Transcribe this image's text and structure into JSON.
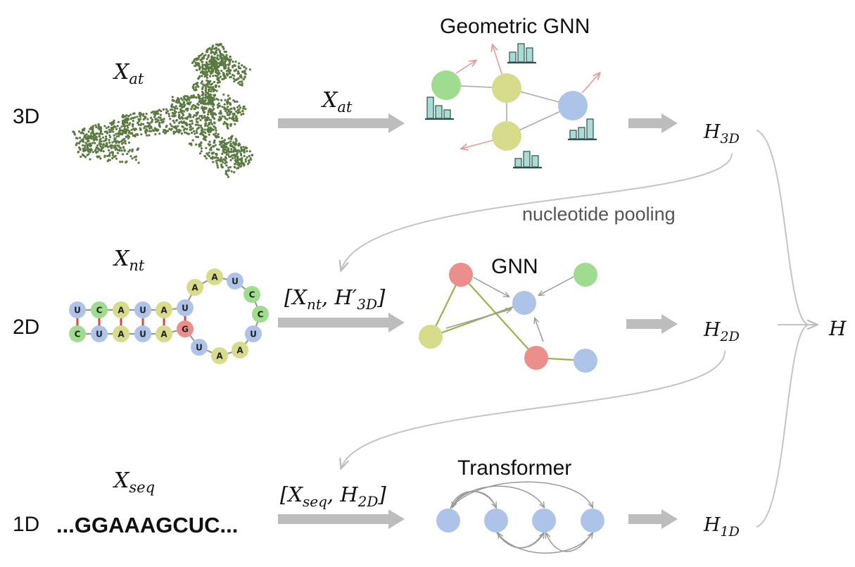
{
  "levels": {
    "d3": "3D",
    "d2": "2D",
    "d1": "1D"
  },
  "modules": {
    "geometric_gnn": "Geometric GNN",
    "gnn": "GNN",
    "transformer": "Transformer"
  },
  "annotations": {
    "nucleotide_pooling": "nucleotide pooling"
  },
  "sequence": "...GGAAAGCUC...",
  "math": {
    "x_at": {
      "base": "X",
      "sub": "at"
    },
    "x_at_arrow": {
      "base": "X",
      "sub": "at"
    },
    "x_nt": {
      "base": "X",
      "sub": "nt"
    },
    "x_seq": {
      "base": "X",
      "sub": "seq"
    },
    "h_3d": {
      "base": "H",
      "sub": "3D"
    },
    "h_2d": {
      "base": "H",
      "sub": "2D"
    },
    "h_1d": {
      "base": "H",
      "sub": "1D"
    },
    "h_final": {
      "base": "H",
      "sub": ""
    },
    "input_2d": {
      "open": "[",
      "a_base": "X",
      "a_sub": "nt",
      "sep": ", ",
      "b_base": "H′",
      "b_sub": "3D",
      "close": "]"
    },
    "input_1d": {
      "open": "[",
      "a_base": "X",
      "a_sub": "seq",
      "sep": ", ",
      "b_base": "H",
      "b_sub": "2D",
      "close": "]"
    }
  },
  "rna_structure": {
    "stem_top": [
      "U",
      "C",
      "A",
      "U",
      "A",
      "U"
    ],
    "stem_bottom": [
      "C",
      "U",
      "A",
      "U",
      "A",
      "G"
    ],
    "loop": [
      "A",
      "A",
      "U",
      "C",
      "C",
      "U",
      "A",
      "A",
      "U"
    ]
  },
  "colors": {
    "A": "#d6dc8c",
    "U": "#adc4e8",
    "C": "#9fdc8f",
    "G": "#ec8f8c",
    "point_cloud": "#5a7a40",
    "arrow": "#b8b8b8",
    "edge_green": "#96b548",
    "vector_arrow": "#e89a94",
    "histogram": "#a8dcd4"
  }
}
